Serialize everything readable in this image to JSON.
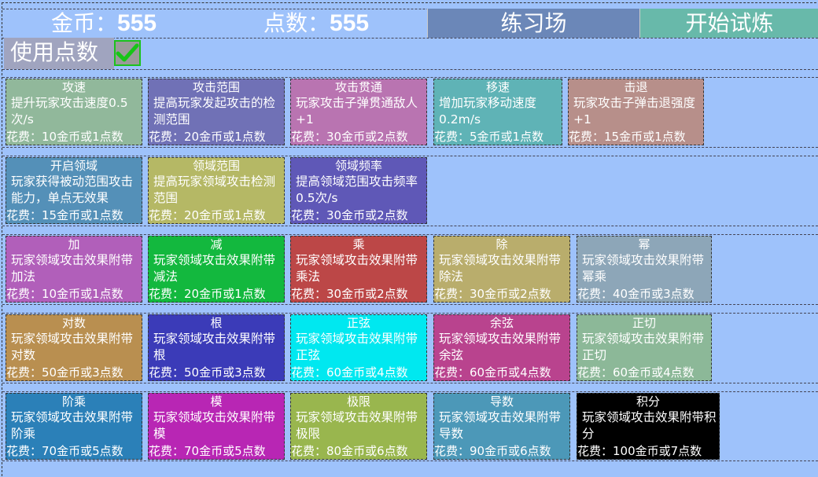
{
  "header": {
    "gold_label": "金币：",
    "gold_value": "555",
    "points_label": "点数：",
    "points_value": "555",
    "practice_button": "练习场",
    "start_button": "开始试炼",
    "practice_color": "#6b87b8",
    "start_color": "#68b9aa"
  },
  "use_points": {
    "label": "使用点数",
    "checked": true
  },
  "rows": [
    [
      {
        "title": "攻速",
        "desc": "提升玩家攻击速度0.5次/s",
        "cost": "花费：10金币或1点数",
        "color": "#91b89b"
      },
      {
        "title": "攻击范围",
        "desc": "提高玩家发起攻击的检测范围",
        "cost": "花费：20金币或1点数",
        "color": "#7071b6"
      },
      {
        "title": "攻击贯通",
        "desc": "玩家攻击子弹贯通敌人+1",
        "cost": "花费：30金币或2点数",
        "color": "#b974b1"
      },
      {
        "title": "移速",
        "desc": "增加玩家移动速度0.2m/s",
        "cost": "花费：5金币或1点数",
        "color": "#5fb3b6"
      },
      {
        "title": "击退",
        "desc": "玩家攻击子弹击退强度+1",
        "cost": "花费：15金币或1点数",
        "color": "#b78f8a"
      }
    ],
    [
      {
        "title": "开启领域",
        "desc": "玩家获得被动范围攻击能力，单点无效果",
        "cost": "花费：15金币或1点数",
        "color": "#5490b8"
      },
      {
        "title": "领域范围",
        "desc": "提高玩家领域攻击检测范围",
        "cost": "花费：20金币或1点数",
        "color": "#b5b865"
      },
      {
        "title": "领域频率",
        "desc": "提高领域范围攻击频率0.5次/s",
        "cost": "花费：30金币或2点数",
        "color": "#5f58b7"
      }
    ],
    [
      {
        "title": "加",
        "desc": "玩家领域攻击效果附带加法",
        "cost": "花费：10金币或1点数",
        "color": "#b15fba"
      },
      {
        "title": "减",
        "desc": "玩家领域攻击效果附带减法",
        "cost": "花费：20金币或1点数",
        "color": "#13b83e"
      },
      {
        "title": "乘",
        "desc": "玩家领域攻击效果附带乘法",
        "cost": "花费：30金币或2点数",
        "color": "#bc4747"
      },
      {
        "title": "除",
        "desc": "玩家领域攻击效果附带除法",
        "cost": "花费：30金币或2点数",
        "color": "#b9ad6c"
      },
      {
        "title": "幂",
        "desc": "玩家领域攻击效果附带幂乘",
        "cost": "花费：40金币或3点数",
        "color": "#8da6b8"
      }
    ],
    [
      {
        "title": "对数",
        "desc": "玩家领域攻击效果附带对数",
        "cost": "花费：50金币或3点数",
        "color": "#b98f50"
      },
      {
        "title": "根",
        "desc": "玩家领域攻击效果附带根",
        "cost": "花费：50金币或3点数",
        "color": "#3b3bb8"
      },
      {
        "title": "正弦",
        "desc": "玩家领域攻击效果附带正弦",
        "cost": "花费：60金币或4点数",
        "color": "#00e8f0"
      },
      {
        "title": "余弦",
        "desc": "玩家领域攻击效果附带余弦",
        "cost": "花费：60金币或4点数",
        "color": "#b9438e"
      },
      {
        "title": "正切",
        "desc": "玩家领域攻击效果附带正切",
        "cost": "花费：60金币或4点数",
        "color": "#8cb898"
      }
    ],
    [
      {
        "title": "阶乘",
        "desc": "玩家领域攻击效果附带阶乘",
        "cost": "花费：70金币或5点数",
        "color": "#2b80b8"
      },
      {
        "title": "模",
        "desc": "玩家领域攻击效果附带模",
        "cost": "花费：70金币或5点数",
        "color": "#b826b4"
      },
      {
        "title": "极限",
        "desc": "玩家领域攻击效果附带极限",
        "cost": "花费：80金币或6点数",
        "color": "#99b64e"
      },
      {
        "title": "导数",
        "desc": "玩家领域攻击效果附带导数",
        "cost": "花费：90金币或6点数",
        "color": "#4c98b8"
      },
      {
        "title": "积分",
        "desc": "玩家领域攻击效果附带积分",
        "cost": "花费：100金币或7点数",
        "color": "#000000"
      }
    ]
  ]
}
